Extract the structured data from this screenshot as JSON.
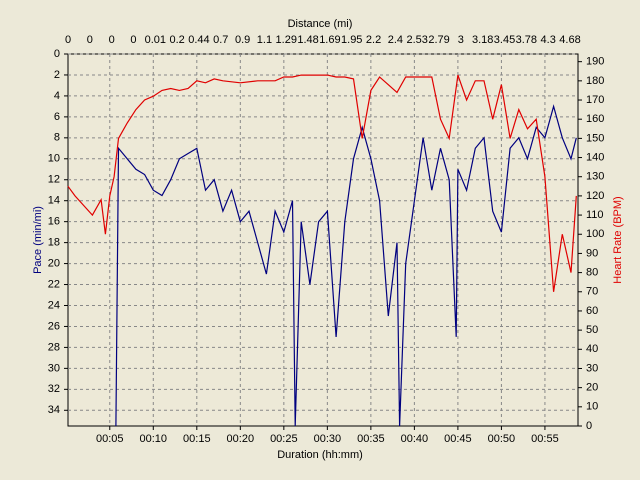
{
  "chart_data": {
    "type": "line",
    "title": "Distance (mi)",
    "x2_labels": [
      "0",
      "0",
      "0",
      "0",
      "0.01",
      "0.2",
      "0.44",
      "0.7",
      "0.9",
      "1.1",
      "1.29",
      "1.48",
      "1.69",
      "1.95",
      "2.2",
      "2.4",
      "2.53",
      "2.79",
      "3",
      "3.18",
      "3.45",
      "3.78",
      "4.3",
      "4.68"
    ],
    "xlabel": "Duration (hh:mm)",
    "ylabel": "Pace (min/mi)",
    "y2label": "Heart Rate (BPM)",
    "xlim": [
      0.2,
      58.8
    ],
    "xticks": [
      {
        "value": 5,
        "label": "00:05"
      },
      {
        "value": 10,
        "label": "00:10"
      },
      {
        "value": 15,
        "label": "00:15"
      },
      {
        "value": 20,
        "label": "00:20"
      },
      {
        "value": 25,
        "label": "00:25"
      },
      {
        "value": 30,
        "label": "00:30"
      },
      {
        "value": 35,
        "label": "00:35"
      },
      {
        "value": 40,
        "label": "00:40"
      },
      {
        "value": 45,
        "label": "00:45"
      },
      {
        "value": 50,
        "label": "00:50"
      },
      {
        "value": 55,
        "label": "00:55"
      }
    ],
    "ylim": [
      0,
      35.5
    ],
    "y_inverted": true,
    "yticks": [
      0,
      2,
      4,
      6,
      8,
      10,
      12,
      14,
      16,
      18,
      20,
      22,
      24,
      26,
      28,
      30,
      32,
      34
    ],
    "y2lim": [
      0,
      194
    ],
    "y2ticks": [
      0,
      10,
      20,
      30,
      40,
      50,
      60,
      70,
      80,
      90,
      100,
      110,
      120,
      130,
      140,
      150,
      160,
      170,
      180,
      190
    ],
    "grid": true,
    "series": [
      {
        "name": "Pace",
        "color": "#00007f",
        "x": [
          5.7,
          6,
          7,
          8,
          9,
          10,
          11,
          12,
          13,
          14,
          15,
          16,
          17,
          18,
          19,
          20,
          21,
          22,
          23,
          24,
          25,
          26,
          26.3,
          27,
          28,
          29,
          30,
          31,
          32,
          33,
          34,
          35,
          36,
          37,
          38,
          38.3,
          39,
          40,
          41,
          42,
          43,
          44,
          44.8,
          45,
          46,
          47,
          48,
          49,
          50,
          51,
          52,
          53,
          54,
          55,
          56,
          57,
          58,
          58.6
        ],
        "values": [
          35.5,
          9,
          10,
          11,
          11.5,
          13,
          13.5,
          12,
          10,
          9.5,
          9,
          13,
          12,
          15,
          13,
          16,
          15,
          18,
          21,
          15,
          17,
          14,
          35.5,
          16,
          22,
          16,
          15,
          27,
          16,
          10,
          7,
          10,
          14,
          25,
          18,
          35.5,
          20,
          14,
          8,
          13,
          9,
          12,
          27,
          11,
          13,
          9,
          8,
          15,
          17,
          9,
          8,
          10,
          7,
          8,
          5,
          8,
          10,
          8
        ]
      },
      {
        "name": "Heart Rate",
        "color": "#e00000",
        "axis": "y2",
        "x": [
          0.2,
          1,
          2,
          3,
          4,
          4.5,
          5,
          5.5,
          6,
          7,
          8,
          9,
          10,
          11,
          12,
          13,
          14,
          15,
          16,
          17,
          18,
          20,
          22,
          24,
          25,
          26,
          27,
          28,
          30,
          31,
          32,
          33,
          34,
          35,
          36,
          37,
          38,
          39,
          40,
          41,
          42,
          43,
          44,
          45,
          46,
          47,
          48,
          49,
          50,
          51,
          52,
          53,
          54,
          55,
          56,
          57,
          58,
          58.6
        ],
        "values": [
          125,
          120,
          115,
          110,
          118,
          100,
          120,
          130,
          150,
          158,
          165,
          170,
          172,
          175,
          176,
          175,
          176,
          180,
          179,
          181,
          180,
          179,
          180,
          180,
          182,
          182,
          183,
          183,
          183,
          182,
          182,
          181,
          150,
          175,
          182,
          178,
          174,
          182,
          182,
          182,
          182,
          160,
          150,
          183,
          170,
          180,
          180,
          160,
          178,
          150,
          165,
          155,
          160,
          130,
          70,
          100,
          80,
          120
        ]
      }
    ]
  }
}
